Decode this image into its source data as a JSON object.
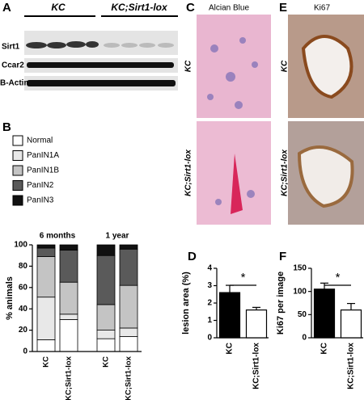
{
  "panels": [
    "A",
    "B",
    "C",
    "D",
    "E",
    "F"
  ],
  "blot": {
    "groups": [
      "KC",
      "KC;Sirt1-lox"
    ],
    "rows": [
      "Sirt1",
      "Ccar2",
      "B-Actin"
    ]
  },
  "images": {
    "C": {
      "title": "Alcian Blue",
      "rows": [
        "KC",
        "KC;Sirt1-lox"
      ]
    },
    "E": {
      "title": "Ki67",
      "rows": [
        "KC",
        "KC;Sirt1-lox"
      ]
    }
  },
  "chart_data": [
    {
      "type": "stacked_bar",
      "group_labels": [
        "6 months",
        "1 year"
      ],
      "categories": [
        "KC",
        "KC;Sirt1-lox",
        "KC",
        "KC;Sirt1-lox"
      ],
      "series": [
        {
          "name": "Normal",
          "color": "#ffffff",
          "values": [
            11,
            30,
            12,
            14
          ]
        },
        {
          "name": "PanIN1A",
          "color": "#e8e8e8",
          "values": [
            40,
            5,
            8,
            8
          ]
        },
        {
          "name": "PanIN1B",
          "color": "#c4c4c4",
          "values": [
            38,
            30,
            24,
            40
          ]
        },
        {
          "name": "PanIN2",
          "color": "#5a5a5a",
          "values": [
            8,
            30,
            46,
            34
          ]
        },
        {
          "name": "PanIN3",
          "color": "#111111",
          "values": [
            3,
            5,
            10,
            4
          ]
        }
      ],
      "y_label": "% animals",
      "ylim": [
        0,
        100
      ],
      "yticks": [
        0,
        20,
        40,
        60,
        80,
        100
      ]
    },
    {
      "type": "bar",
      "categories": [
        "KC",
        "KC;Sirt1-lox"
      ],
      "values": [
        2.6,
        1.6
      ],
      "errors": [
        0.42,
        0.15
      ],
      "colors": [
        "#000000",
        "#ffffff"
      ],
      "y_label": "lesion area (%)",
      "annotation": "*",
      "ylim": [
        0,
        4
      ],
      "yticks": [
        0,
        1,
        2,
        3,
        4
      ]
    },
    {
      "type": "bar",
      "categories": [
        "KC",
        "KC;Sirt1-lox"
      ],
      "values": [
        105,
        60
      ],
      "errors": [
        13,
        14
      ],
      "colors": [
        "#000000",
        "#ffffff"
      ],
      "y_label": "Ki67 per image",
      "annotation": "*",
      "ylim": [
        0,
        150
      ],
      "yticks": [
        0,
        50,
        100,
        150
      ]
    }
  ]
}
